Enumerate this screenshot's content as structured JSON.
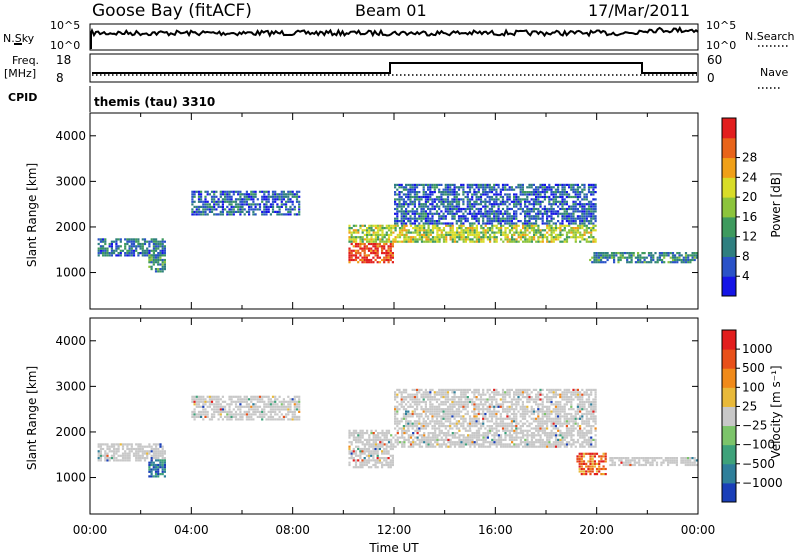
{
  "header": {
    "station": "Goose Bay (fitACF)",
    "beam": "Beam 01",
    "date": "17/Mar/2011"
  },
  "strip": {
    "nsky_label": "N.Sky",
    "nsky_ticks": [
      "10^5",
      "10^0"
    ],
    "nsearch_label": "N.Search",
    "nsearch_ticks": [
      "10^5",
      "10^0"
    ],
    "freq_label": "Freq.",
    "freq_unit": "[MHz]",
    "freq_ticks": [
      "18",
      "8"
    ],
    "nave_label": "Nave",
    "nave_ticks": [
      "60",
      "0"
    ],
    "cpid_label": "CPID",
    "cpid_text": "themis (tau) 3310"
  },
  "chart_data": [
    {
      "type": "heatmap",
      "name": "power",
      "ylabel": "Slant Range [km]",
      "xlabel": "",
      "yticks": [
        "1000",
        "2000",
        "3000",
        "4000"
      ],
      "xlim": [
        0,
        24
      ],
      "ylim": [
        200,
        4500
      ],
      "colorbar": {
        "label": "Power [dB]",
        "ticks": [
          "4",
          "8",
          "12",
          "16",
          "20",
          "24",
          "28"
        ],
        "colors": [
          "#1515e6",
          "#2a52c8",
          "#2f7f80",
          "#3e9a5e",
          "#8cc43c",
          "#d8dc28",
          "#f0a018",
          "#e8641a",
          "#e21e1e"
        ]
      },
      "regions": [
        {
          "t0": 0.3,
          "t1": 3.0,
          "r0": 1400,
          "r1": 1800,
          "level": 0.25
        },
        {
          "t0": 2.3,
          "t1": 3.0,
          "r0": 1050,
          "r1": 1450,
          "level": 0.35
        },
        {
          "t0": 4.0,
          "t1": 8.3,
          "r0": 2300,
          "r1": 2850,
          "level": 0.2
        },
        {
          "t0": 10.2,
          "t1": 12.0,
          "r0": 1250,
          "r1": 1700,
          "level": 0.9
        },
        {
          "t0": 10.2,
          "t1": 20.0,
          "r0": 1700,
          "r1": 2100,
          "level": 0.55
        },
        {
          "t0": 12.0,
          "t1": 20.0,
          "r0": 2100,
          "r1": 3000,
          "level": 0.2
        },
        {
          "t0": 19.7,
          "t1": 24.0,
          "r0": 1250,
          "r1": 1500,
          "level": 0.3
        }
      ]
    },
    {
      "type": "heatmap",
      "name": "velocity",
      "ylabel": "Slant Range [km]",
      "xlabel": "Time UT",
      "xticks": [
        "00:00",
        "04:00",
        "08:00",
        "12:00",
        "16:00",
        "20:00",
        "00:00"
      ],
      "yticks": [
        "1000",
        "2000",
        "3000",
        "4000"
      ],
      "xlim": [
        0,
        24
      ],
      "ylim": [
        200,
        4500
      ],
      "colorbar": {
        "label": "Velocity [m s⁻¹]",
        "ticks": [
          "1000",
          "500",
          "100",
          "25",
          "−25",
          "−100",
          "−500",
          "−1000"
        ],
        "colors": [
          "#1a3fb8",
          "#2f7f9a",
          "#3ea27a",
          "#7cc46a",
          "#c8c8c8",
          "#e8b93a",
          "#f08a1a",
          "#e8501a",
          "#e21e1e"
        ]
      },
      "regions": [
        {
          "t0": 0.3,
          "t1": 3.0,
          "r0": 1400,
          "r1": 1800,
          "level": 0.5
        },
        {
          "t0": 2.3,
          "t1": 3.0,
          "r0": 1050,
          "r1": 1450,
          "level": 0.15
        },
        {
          "t0": 4.0,
          "t1": 8.3,
          "r0": 2300,
          "r1": 2850,
          "level": 0.5
        },
        {
          "t0": 10.2,
          "t1": 12.0,
          "r0": 1250,
          "r1": 1700,
          "level": 0.5
        },
        {
          "t0": 10.2,
          "t1": 20.0,
          "r0": 1700,
          "r1": 2100,
          "level": 0.5
        },
        {
          "t0": 12.0,
          "t1": 20.0,
          "r0": 2100,
          "r1": 3000,
          "level": 0.5
        },
        {
          "t0": 19.2,
          "t1": 20.4,
          "r0": 1100,
          "r1": 1600,
          "level": 0.8
        },
        {
          "t0": 20.5,
          "t1": 24.0,
          "r0": 1300,
          "r1": 1500,
          "level": 0.5
        }
      ]
    }
  ]
}
